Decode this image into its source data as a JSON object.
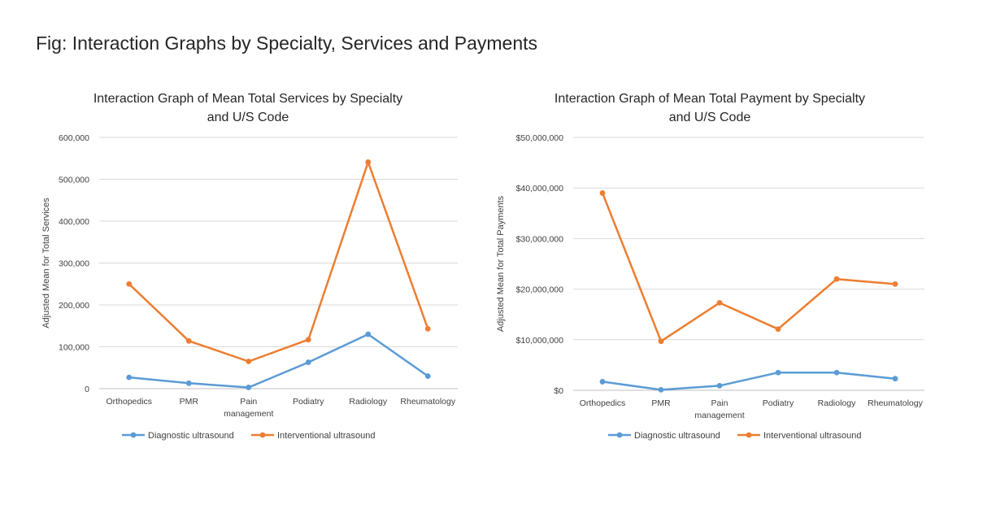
{
  "figure_title": "Fig: Interaction Graphs by Specialty, Services and Payments",
  "colors": {
    "diagnostic": "#5b9bd5",
    "interventional": "#ed7d31",
    "grid": "#d9d9d9",
    "text": "#404040"
  },
  "chart_data": [
    {
      "type": "line",
      "title_lines": [
        "Interaction Graph of Mean Total Services by Specialty",
        "and U/S Code"
      ],
      "xlabel": "",
      "ylabel": "Adjusted Mean for Total Services",
      "categories": [
        [
          "Orthopedics"
        ],
        [
          "PMR"
        ],
        [
          "Pain",
          "management"
        ],
        [
          "Podiatry"
        ],
        [
          "Radiology"
        ],
        [
          "Rheumatology"
        ]
      ],
      "ylim": [
        0,
        600000
      ],
      "ytick_values": [
        0,
        100000,
        200000,
        300000,
        400000,
        500000,
        600000
      ],
      "ytick_labels": [
        "0",
        "100,000",
        "200,000",
        "300,000",
        "400,000",
        "500,000",
        "600,000"
      ],
      "grid": true,
      "legend_position": "bottom",
      "series": [
        {
          "name": "Diagnostic ultrasound",
          "values": [
            27000,
            13000,
            3000,
            63000,
            130000,
            30000
          ]
        },
        {
          "name": "Interventional ultrasound",
          "values": [
            250000,
            114000,
            65000,
            117000,
            541000,
            143000
          ]
        }
      ]
    },
    {
      "type": "line",
      "title_lines": [
        "Interaction Graph of Mean Total Payment by Specialty",
        "and U/S Code"
      ],
      "xlabel": "",
      "ylabel": "Adjusted Mean for Total Payments",
      "categories": [
        [
          "Orthopedics"
        ],
        [
          "PMR"
        ],
        [
          "Pain",
          "management"
        ],
        [
          "Podiatry"
        ],
        [
          "Radiology"
        ],
        [
          "Rheumatology"
        ]
      ],
      "ylim": [
        0,
        50000000
      ],
      "ytick_values": [
        0,
        10000000,
        20000000,
        30000000,
        40000000,
        50000000
      ],
      "ytick_labels": [
        "$0",
        "$10,000,000",
        "$20,000,000",
        "$30,000,000",
        "$40,000,000",
        "$50,000,000"
      ],
      "grid": true,
      "legend_position": "bottom",
      "series": [
        {
          "name": "Diagnostic ultrasound",
          "values": [
            1700000,
            100000,
            900000,
            3500000,
            3500000,
            2300000
          ]
        },
        {
          "name": "Interventional ultrasound",
          "values": [
            39000000,
            9700000,
            17300000,
            12100000,
            22000000,
            21000000
          ]
        }
      ]
    }
  ]
}
